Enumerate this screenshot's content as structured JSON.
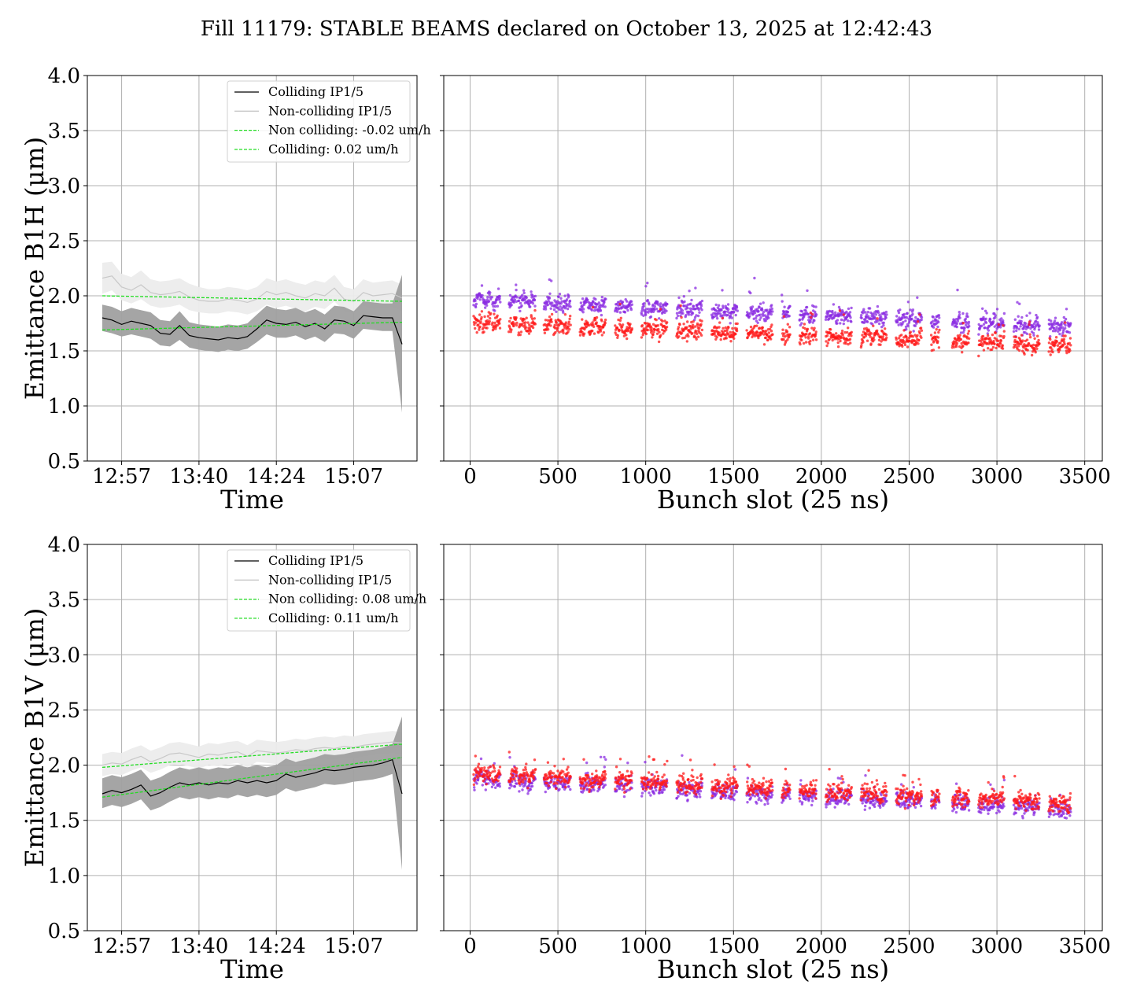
{
  "title": "Fill 11179: STABLE BEAMS declared on October 13, 2025 at 12:42:43",
  "colors": {
    "colliding_line": "#000000",
    "colliding_band": "#a0a0a0",
    "noncolliding_line": "#c8c8c8",
    "noncolliding_band": "#ececec",
    "fit_line": "#22dd22",
    "scatter_purple": "#8a2be2",
    "scatter_red": "#ff1a1a",
    "grid": "#b0b0b0"
  },
  "chart_data": [
    {
      "type": "line",
      "ylabel": "Emittance B1H (μm)",
      "xlabel": "Time",
      "ylim": [
        0.5,
        4.0
      ],
      "yticks": [
        "0.5",
        "1.0",
        "1.5",
        "2.0",
        "2.5",
        "3.0",
        "3.5",
        "4.0"
      ],
      "xticks": [
        "12:57",
        "13:40",
        "14:24",
        "15:07"
      ],
      "grid": true,
      "legend_position": "top-right",
      "legend": [
        "Colliding IP1/5",
        "Non-colliding IP1/5",
        "Non colliding: -0.02 um/h",
        "Colliding: 0.02 um/h"
      ],
      "x": [
        "12:46",
        "12:52",
        "12:57",
        "13:03",
        "13:08",
        "13:14",
        "13:19",
        "13:24",
        "13:30",
        "13:35",
        "13:40",
        "13:46",
        "13:51",
        "13:57",
        "14:02",
        "14:08",
        "14:13",
        "14:19",
        "14:24",
        "14:29",
        "14:35",
        "14:40",
        "14:46",
        "14:51",
        "14:56",
        "15:02",
        "15:07",
        "15:13",
        "15:18",
        "15:24",
        "15:29",
        "15:32"
      ],
      "series": [
        {
          "name": "Colliding IP1/5",
          "values": [
            1.8,
            1.78,
            1.74,
            1.77,
            1.75,
            1.73,
            1.66,
            1.65,
            1.73,
            1.64,
            1.62,
            1.61,
            1.6,
            1.62,
            1.61,
            1.63,
            1.7,
            1.78,
            1.75,
            1.74,
            1.76,
            1.72,
            1.75,
            1.7,
            1.78,
            1.77,
            1.73,
            1.82,
            1.81,
            1.8,
            1.8,
            1.56
          ],
          "band_low": [
            1.68,
            1.66,
            1.63,
            1.65,
            1.63,
            1.61,
            1.55,
            1.54,
            1.6,
            1.53,
            1.51,
            1.5,
            1.49,
            1.51,
            1.5,
            1.52,
            1.58,
            1.65,
            1.62,
            1.62,
            1.64,
            1.6,
            1.63,
            1.58,
            1.66,
            1.65,
            1.61,
            1.7,
            1.69,
            1.68,
            1.68,
            0.94
          ],
          "band_high": [
            1.92,
            1.9,
            1.86,
            1.89,
            1.87,
            1.85,
            1.78,
            1.77,
            1.86,
            1.76,
            1.74,
            1.73,
            1.72,
            1.74,
            1.73,
            1.75,
            1.83,
            1.91,
            1.88,
            1.87,
            1.89,
            1.85,
            1.88,
            1.83,
            1.91,
            1.9,
            1.86,
            1.95,
            1.94,
            1.93,
            1.93,
            2.19
          ]
        },
        {
          "name": "Non-colliding IP1/5",
          "values": [
            2.16,
            2.18,
            2.08,
            2.05,
            2.1,
            2.03,
            2.01,
            2.02,
            2.04,
            1.99,
            1.96,
            1.95,
            1.95,
            1.97,
            1.96,
            1.94,
            1.97,
            2.04,
            2.01,
            2.03,
            2.0,
            1.98,
            2.02,
            2.0,
            2.07,
            1.97,
            1.95,
            2.03,
            2.0,
            2.01,
            2.02,
            1.98
          ],
          "band_low": [
            2.02,
            2.05,
            1.96,
            1.93,
            1.97,
            1.91,
            1.89,
            1.9,
            1.92,
            1.87,
            1.85,
            1.84,
            1.84,
            1.86,
            1.85,
            1.83,
            1.86,
            1.92,
            1.89,
            1.91,
            1.88,
            1.86,
            1.9,
            1.88,
            1.95,
            1.86,
            1.84,
            1.91,
            1.88,
            1.89,
            1.9,
            1.86
          ],
          "band_high": [
            2.3,
            2.31,
            2.2,
            2.17,
            2.23,
            2.15,
            2.13,
            2.14,
            2.16,
            2.11,
            2.08,
            2.06,
            2.06,
            2.08,
            2.07,
            2.05,
            2.08,
            2.16,
            2.13,
            2.15,
            2.12,
            2.1,
            2.14,
            2.12,
            2.19,
            2.08,
            2.06,
            2.15,
            2.12,
            2.13,
            2.14,
            2.1
          ]
        }
      ],
      "fits": [
        {
          "name": "Non colliding: -0.02 um/h",
          "start": 2.0,
          "end": 1.95
        },
        {
          "name": "Colliding: 0.02 um/h",
          "start": 1.69,
          "end": 1.76
        }
      ]
    },
    {
      "type": "scatter",
      "xlabel": "Bunch slot (25 ns)",
      "ylim": [
        0.5,
        4.0
      ],
      "xlim": [
        -150,
        3600
      ],
      "xticks": [
        "0",
        "500",
        "1000",
        "1500",
        "2000",
        "2500",
        "3000",
        "3500"
      ],
      "grid": true,
      "trains": [
        20,
        70,
        125,
        220,
        275,
        325,
        420,
        475,
        525,
        625,
        675,
        725,
        825,
        875,
        975,
        1025,
        1075,
        1175,
        1225,
        1275,
        1375,
        1425,
        1475,
        1575,
        1625,
        1675,
        1775,
        1875,
        1925,
        2025,
        2075,
        2125,
        2225,
        2275,
        2325,
        2425,
        2475,
        2525,
        2625,
        2745,
        2795,
        2895,
        2945,
        2995,
        3095,
        3145,
        3195,
        3295,
        3345,
        3395
      ],
      "series": [
        {
          "name": "purple",
          "color": "#8a2be2",
          "start": 1.97,
          "end": 1.72
        },
        {
          "name": "red",
          "color": "#ff1a1a",
          "start": 1.76,
          "end": 1.55
        }
      ]
    },
    {
      "type": "line",
      "ylabel": "Emittance B1V (μm)",
      "xlabel": "Time",
      "ylim": [
        0.5,
        4.0
      ],
      "yticks": [
        "0.5",
        "1.0",
        "1.5",
        "2.0",
        "2.5",
        "3.0",
        "3.5",
        "4.0"
      ],
      "xticks": [
        "12:57",
        "13:40",
        "14:24",
        "15:07"
      ],
      "grid": true,
      "legend_position": "top-right",
      "legend": [
        "Colliding IP1/5",
        "Non-colliding IP1/5",
        "Non colliding: 0.08 um/h",
        "Colliding: 0.11 um/h"
      ],
      "x": [
        "12:46",
        "12:52",
        "12:57",
        "13:03",
        "13:08",
        "13:14",
        "13:19",
        "13:24",
        "13:30",
        "13:35",
        "13:40",
        "13:46",
        "13:51",
        "13:57",
        "14:02",
        "14:08",
        "14:13",
        "14:19",
        "14:24",
        "14:29",
        "14:35",
        "14:40",
        "14:46",
        "14:51",
        "14:56",
        "15:02",
        "15:07",
        "15:13",
        "15:18",
        "15:24",
        "15:29",
        "15:32"
      ],
      "series": [
        {
          "name": "Colliding IP1/5",
          "values": [
            1.74,
            1.77,
            1.75,
            1.78,
            1.82,
            1.72,
            1.75,
            1.8,
            1.84,
            1.82,
            1.84,
            1.82,
            1.84,
            1.83,
            1.86,
            1.84,
            1.86,
            1.84,
            1.86,
            1.92,
            1.89,
            1.91,
            1.93,
            1.96,
            1.95,
            1.96,
            1.98,
            1.99,
            2.0,
            2.02,
            2.05,
            1.74
          ],
          "band_low": [
            1.61,
            1.64,
            1.62,
            1.65,
            1.69,
            1.59,
            1.62,
            1.67,
            1.71,
            1.69,
            1.71,
            1.69,
            1.71,
            1.7,
            1.73,
            1.71,
            1.73,
            1.71,
            1.73,
            1.79,
            1.76,
            1.78,
            1.8,
            1.83,
            1.82,
            1.83,
            1.85,
            1.86,
            1.87,
            1.89,
            1.92,
            1.05
          ],
          "band_high": [
            1.88,
            1.91,
            1.89,
            1.92,
            1.96,
            1.86,
            1.89,
            1.94,
            1.98,
            1.96,
            1.98,
            1.96,
            1.98,
            1.97,
            2.0,
            1.98,
            2.0,
            1.98,
            2.0,
            2.06,
            2.03,
            2.05,
            2.07,
            2.1,
            2.09,
            2.1,
            2.12,
            2.13,
            2.14,
            2.16,
            2.19,
            2.44
          ]
        },
        {
          "name": "Non-colliding IP1/5",
          "values": [
            2.0,
            2.02,
            2.01,
            2.05,
            2.08,
            2.03,
            2.06,
            2.1,
            2.11,
            2.09,
            2.07,
            2.1,
            2.09,
            2.11,
            2.12,
            2.08,
            2.13,
            2.12,
            2.11,
            2.12,
            2.14,
            2.13,
            2.15,
            2.16,
            2.15,
            2.17,
            2.16,
            2.18,
            2.19,
            2.2,
            2.21,
            2.2
          ],
          "band_low": [
            1.9,
            1.92,
            1.91,
            1.95,
            1.98,
            1.93,
            1.96,
            2.0,
            2.01,
            1.99,
            1.97,
            2.0,
            1.99,
            2.01,
            2.02,
            1.98,
            2.03,
            2.02,
            2.01,
            2.02,
            2.04,
            2.03,
            2.05,
            2.06,
            2.05,
            2.07,
            2.06,
            2.08,
            2.09,
            2.1,
            2.11,
            2.1
          ],
          "band_high": [
            2.1,
            2.12,
            2.11,
            2.15,
            2.18,
            2.13,
            2.16,
            2.2,
            2.21,
            2.19,
            2.17,
            2.2,
            2.19,
            2.21,
            2.22,
            2.18,
            2.23,
            2.22,
            2.21,
            2.22,
            2.24,
            2.23,
            2.25,
            2.26,
            2.25,
            2.27,
            2.26,
            2.28,
            2.29,
            2.3,
            2.31,
            2.3
          ]
        }
      ],
      "fits": [
        {
          "name": "Non colliding: 0.08 um/h",
          "start": 1.98,
          "end": 2.19
        },
        {
          "name": "Colliding: 0.11 um/h",
          "start": 1.71,
          "end": 2.07
        }
      ]
    },
    {
      "type": "scatter",
      "xlabel": "Bunch slot (25 ns)",
      "ylim": [
        0.5,
        4.0
      ],
      "xlim": [
        -150,
        3600
      ],
      "xticks": [
        "0",
        "500",
        "1000",
        "1500",
        "2000",
        "2500",
        "3000",
        "3500"
      ],
      "grid": true,
      "trains": [
        20,
        70,
        125,
        220,
        275,
        325,
        420,
        475,
        525,
        625,
        675,
        725,
        825,
        875,
        975,
        1025,
        1075,
        1175,
        1225,
        1275,
        1375,
        1425,
        1475,
        1575,
        1625,
        1675,
        1775,
        1875,
        1925,
        2025,
        2075,
        2125,
        2225,
        2275,
        2325,
        2425,
        2475,
        2525,
        2625,
        2745,
        2795,
        2895,
        2945,
        2995,
        3095,
        3145,
        3195,
        3295,
        3345,
        3395
      ],
      "series": [
        {
          "name": "purple",
          "color": "#8a2be2",
          "start": 1.88,
          "end": 1.6
        },
        {
          "name": "red",
          "color": "#ff1a1a",
          "start": 1.93,
          "end": 1.65
        }
      ]
    }
  ]
}
